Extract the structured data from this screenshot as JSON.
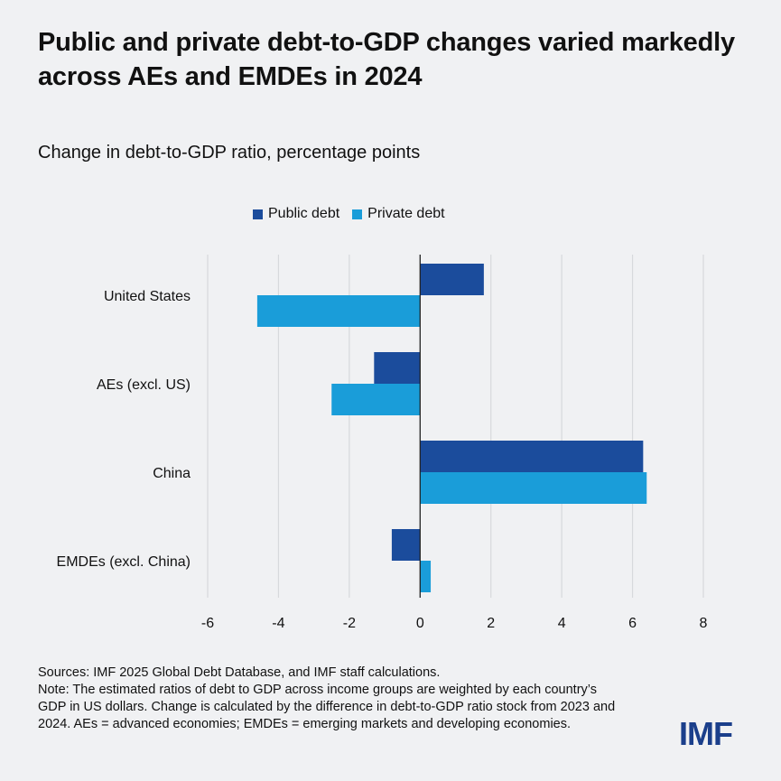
{
  "title": "Public and private debt-to-GDP changes varied markedly across AEs and EMDEs in 2024",
  "subtitle": "Change in debt-to-GDP ratio, percentage points",
  "colors": {
    "public": "#1b4c9c",
    "private": "#1a9dd9",
    "grid": "#d7d9dc",
    "axis": "#222222"
  },
  "chart_data": {
    "type": "bar",
    "orientation": "horizontal",
    "categories": [
      "United States",
      "AEs (excl. US)",
      "China",
      "EMDEs (excl. China)"
    ],
    "series": [
      {
        "name": "Public debt",
        "values": [
          1.8,
          -1.3,
          6.3,
          -0.8
        ]
      },
      {
        "name": "Private debt",
        "values": [
          -4.6,
          -2.5,
          6.4,
          0.3
        ]
      }
    ],
    "xlim": [
      -6,
      8
    ],
    "xticks": [
      "-6",
      "-4",
      "-2",
      "0",
      "2",
      "4",
      "6",
      "8"
    ],
    "grid": true,
    "legend_position": "top"
  },
  "notes": {
    "sources": "Sources: IMF 2025 Global Debt Database, and IMF staff calculations.",
    "note": "Note: The estimated ratios of debt to GDP across income groups are weighted by each country’s GDP in US dollars. Change is calculated by the difference in debt-to-GDP ratio stock from 2023 and 2024. AEs = advanced economies; EMDEs = emerging markets and developing economies."
  },
  "logo_text": "IMF"
}
